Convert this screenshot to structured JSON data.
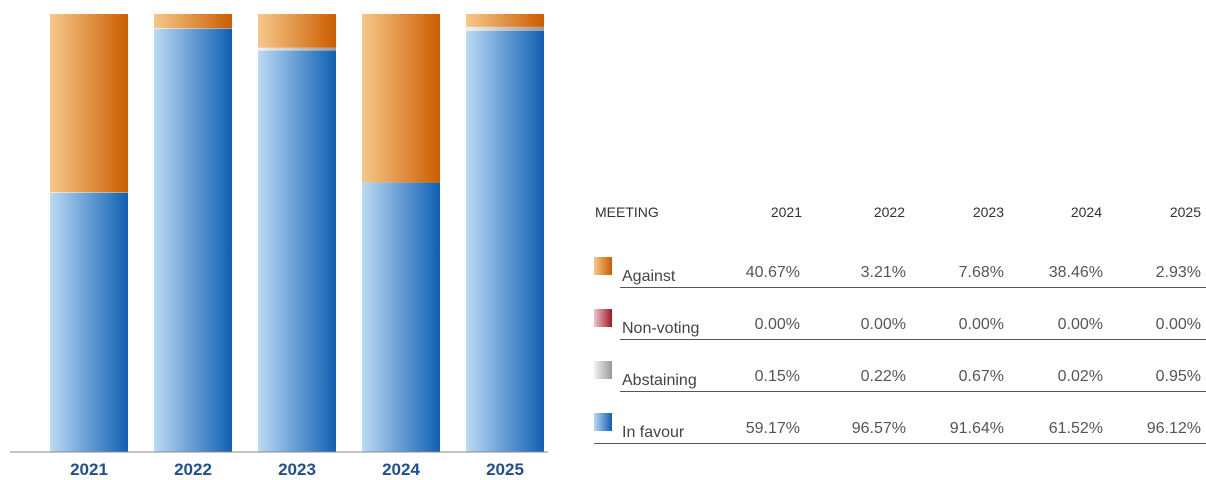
{
  "chart_data": {
    "type": "bar",
    "stacked": true,
    "categories": [
      "2021",
      "2022",
      "2023",
      "2024",
      "2025"
    ],
    "ylim": [
      0,
      100
    ],
    "series": [
      {
        "name": "In favour",
        "values": [
          59.17,
          96.57,
          91.64,
          61.52,
          96.12
        ],
        "color": "#1e64b4"
      },
      {
        "name": "Abstaining",
        "values": [
          0.15,
          0.22,
          0.67,
          0.02,
          0.95
        ],
        "color": "#c8c8c8"
      },
      {
        "name": "Non-voting",
        "values": [
          0.0,
          0.0,
          0.0,
          0.0,
          0.0
        ],
        "color": "#b02030"
      },
      {
        "name": "Against",
        "values": [
          40.67,
          3.21,
          7.68,
          38.46,
          2.93
        ],
        "color": "#d86a10"
      }
    ],
    "gradients": {
      "In favour": [
        "#bcdaf4",
        "#0f5fb4"
      ],
      "Abstaining": [
        "#f2f2f2",
        "#9a9a9a"
      ],
      "Non-voting": [
        "#f0c4c8",
        "#a01828"
      ],
      "Against": [
        "#f6c88a",
        "#cc5c00"
      ]
    }
  },
  "table": {
    "header": "MEETING",
    "columns": [
      "2021",
      "2022",
      "2023",
      "2024",
      "2025"
    ],
    "rows": [
      {
        "label": "Against",
        "values": [
          "40.67%",
          "3.21%",
          "7.68%",
          "38.46%",
          "2.93%"
        ]
      },
      {
        "label": "Non-voting",
        "values": [
          "0.00%",
          "0.00%",
          "0.00%",
          "0.00%",
          "0.00%"
        ]
      },
      {
        "label": "Abstaining",
        "values": [
          "0.15%",
          "0.22%",
          "0.67%",
          "0.02%",
          "0.95%"
        ]
      },
      {
        "label": "In favour",
        "values": [
          "59.17%",
          "96.57%",
          "91.64%",
          "61.52%",
          "96.12%"
        ]
      }
    ]
  }
}
